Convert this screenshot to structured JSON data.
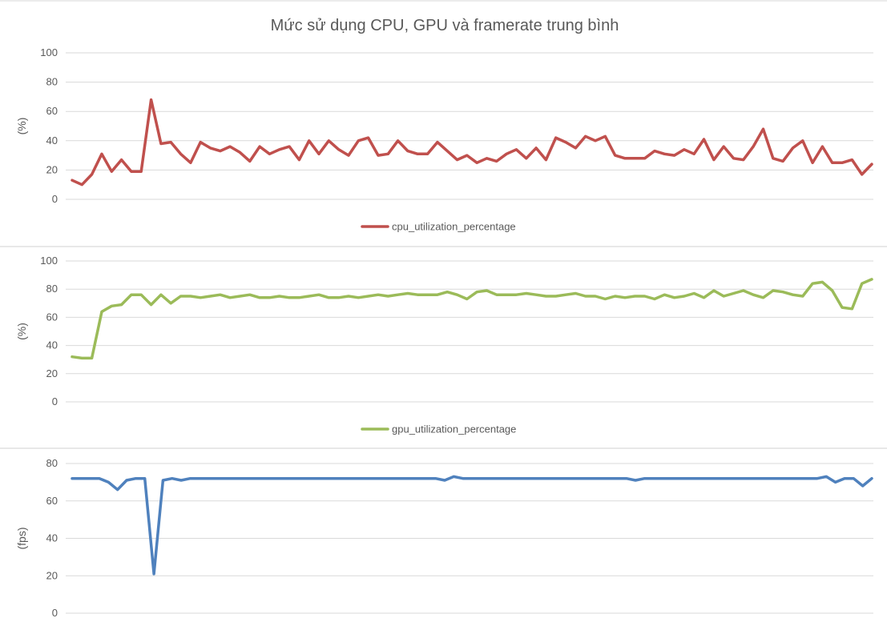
{
  "title": "Mức sử dụng CPU, GPU và framerate trung bình",
  "chart_data": [
    {
      "type": "line",
      "ylabel": "(%)",
      "ylim": [
        0,
        100
      ],
      "yticks": [
        0,
        20,
        40,
        60,
        80,
        100
      ],
      "grid": true,
      "legend_position": "bottom",
      "series": [
        {
          "name": "cpu_utilization_percentage",
          "color": "#c0504d",
          "values": [
            13,
            10,
            17,
            31,
            19,
            27,
            19,
            19,
            68,
            38,
            39,
            31,
            25,
            39,
            35,
            33,
            36,
            32,
            26,
            36,
            31,
            34,
            36,
            27,
            40,
            31,
            40,
            34,
            30,
            40,
            42,
            30,
            31,
            40,
            33,
            31,
            31,
            39,
            33,
            27,
            30,
            25,
            28,
            26,
            31,
            34,
            28,
            35,
            27,
            42,
            39,
            35,
            43,
            40,
            43,
            30,
            28,
            28,
            28,
            33,
            31,
            30,
            34,
            31,
            41,
            27,
            36,
            28,
            27,
            36,
            48,
            28,
            26,
            35,
            40,
            25,
            36,
            25,
            25,
            27,
            17,
            24
          ]
        }
      ]
    },
    {
      "type": "line",
      "ylabel": "(%)",
      "ylim": [
        0,
        100
      ],
      "yticks": [
        0,
        20,
        40,
        60,
        80,
        100
      ],
      "grid": true,
      "legend_position": "bottom",
      "series": [
        {
          "name": "gpu_utilization_percentage",
          "color": "#9bbb59",
          "values": [
            32,
            31,
            31,
            64,
            68,
            69,
            76,
            76,
            69,
            76,
            70,
            75,
            75,
            74,
            75,
            76,
            74,
            75,
            76,
            74,
            74,
            75,
            74,
            74,
            75,
            76,
            74,
            74,
            75,
            74,
            75,
            76,
            75,
            76,
            77,
            76,
            76,
            76,
            78,
            76,
            73,
            78,
            79,
            76,
            76,
            76,
            77,
            76,
            75,
            75,
            76,
            77,
            75,
            75,
            73,
            75,
            74,
            75,
            75,
            73,
            76,
            74,
            75,
            77,
            74,
            79,
            75,
            77,
            79,
            76,
            74,
            79,
            78,
            76,
            75,
            84,
            85,
            79,
            67,
            66,
            84,
            87
          ]
        }
      ]
    },
    {
      "type": "line",
      "ylabel": "(fps)",
      "ylim": [
        0,
        80
      ],
      "yticks": [
        0,
        20,
        40,
        60,
        80
      ],
      "grid": true,
      "series": [
        {
          "color": "#4f81bd",
          "values": [
            72,
            72,
            72,
            72,
            70,
            66,
            71,
            72,
            72,
            21,
            71,
            72,
            71,
            72,
            72,
            72,
            72,
            72,
            72,
            72,
            72,
            72,
            72,
            72,
            72,
            72,
            72,
            72,
            72,
            72,
            72,
            72,
            72,
            72,
            72,
            72,
            72,
            72,
            72,
            72,
            72,
            71,
            73,
            72,
            72,
            72,
            72,
            72,
            72,
            72,
            72,
            72,
            72,
            72,
            72,
            72,
            72,
            72,
            72,
            72,
            72,
            72,
            71,
            72,
            72,
            72,
            72,
            72,
            72,
            72,
            72,
            72,
            72,
            72,
            72,
            72,
            72,
            72,
            72,
            72,
            72,
            72,
            72,
            73,
            70,
            72,
            72,
            68,
            72
          ]
        }
      ]
    }
  ]
}
